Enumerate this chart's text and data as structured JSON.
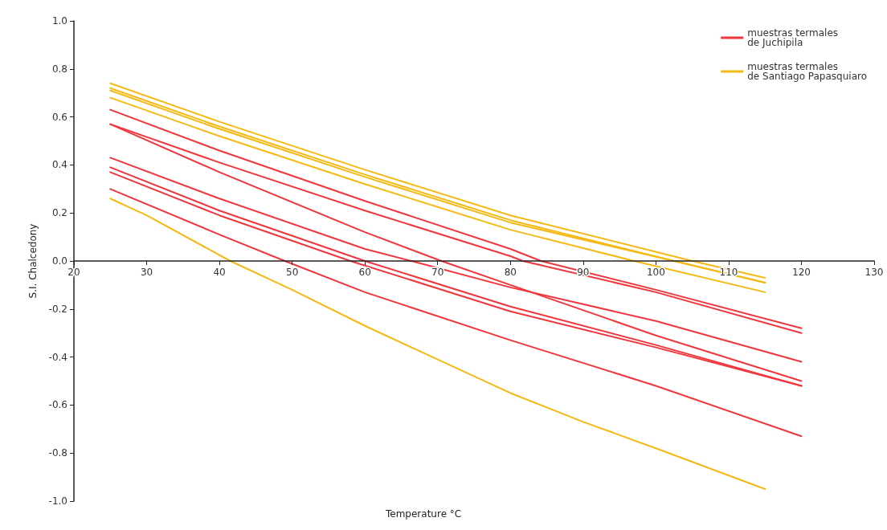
{
  "chart_data": {
    "type": "line",
    "xlabel": "Temperature °C",
    "ylabel": "S.I. Chalcedony",
    "xlim": [
      20,
      130
    ],
    "xticks": [
      20,
      30,
      40,
      50,
      60,
      70,
      80,
      90,
      100,
      110,
      120,
      130
    ],
    "ylim": [
      -1,
      1
    ],
    "yticks": [
      {
        "value": -1,
        "label": "-1.0"
      },
      {
        "value": -0.8,
        "label": "-0.8"
      },
      {
        "value": -0.6,
        "label": "-0.6"
      },
      {
        "value": -0.4,
        "label": "-0.4"
      },
      {
        "value": -0.2,
        "label": "-0.2"
      },
      {
        "value": 0,
        "label": "0.0"
      },
      {
        "value": 0.2,
        "label": "0.2"
      },
      {
        "value": 0.4,
        "label": "0.4"
      },
      {
        "value": 0.6,
        "label": "0.6"
      },
      {
        "value": 0.8,
        "label": "0.8"
      },
      {
        "value": 1,
        "label": "1.0"
      }
    ],
    "legend": "top right",
    "marker": "none",
    "line_style": "solid",
    "series": [
      {
        "name": "muestras termales\nde Juchipila",
        "color": "#f0363c",
        "x": [
          25,
          40,
          60,
          80,
          84.2,
          100,
          120
        ],
        "values": [
          0.63,
          0.46,
          0.25,
          0.05,
          0,
          -0.12,
          -0.28
        ]
      },
      {
        "color": "#f0363c",
        "x": [
          25,
          40,
          60,
          80,
          81.7,
          100,
          120
        ],
        "values": [
          0.57,
          0.41,
          0.21,
          0.02,
          0,
          -0.13,
          -0.3
        ]
      },
      {
        "color": "#f0363c",
        "x": [
          25,
          40,
          60,
          70.5,
          80,
          100,
          120
        ],
        "values": [
          0.57,
          0.37,
          0.12,
          0,
          -0.1,
          -0.31,
          -0.5
        ]
      },
      {
        "color": "#f0363c",
        "x": [
          25,
          40,
          60,
          66.4,
          80,
          100,
          120
        ],
        "values": [
          0.43,
          0.26,
          0.05,
          0,
          -0.11,
          -0.25,
          -0.42
        ]
      },
      {
        "color": "#f0363c",
        "x": [
          25,
          40,
          60,
          80,
          100,
          120
        ],
        "values": [
          0.39,
          0.21,
          0,
          -0.19,
          -0.35,
          -0.52
        ]
      },
      {
        "color": "#f0363c",
        "x": [
          25,
          40,
          58,
          80,
          100,
          120
        ],
        "values": [
          0.37,
          0.19,
          0,
          -0.21,
          -0.36,
          -0.52
        ]
      },
      {
        "color": "#f0363c",
        "x": [
          25,
          40,
          49,
          60,
          80,
          100,
          120
        ],
        "values": [
          0.3,
          0.11,
          0,
          -0.13,
          -0.33,
          -0.52,
          -0.73
        ]
      },
      {
        "name": "muestras termales\nde Santiago Papasquiaro",
        "color": "#f5b914",
        "x": [
          25,
          40,
          60,
          80,
          105,
          115
        ],
        "values": [
          0.74,
          0.58,
          0.38,
          0.19,
          0,
          -0.07
        ]
      },
      {
        "color": "#f5b914",
        "x": [
          25,
          40,
          60,
          80,
          102.5,
          115
        ],
        "values": [
          0.72,
          0.56,
          0.36,
          0.17,
          0,
          -0.09
        ]
      },
      {
        "color": "#f5b914",
        "x": [
          25,
          40,
          60,
          80,
          102.5,
          115
        ],
        "values": [
          0.71,
          0.55,
          0.35,
          0.16,
          0,
          -0.09
        ]
      },
      {
        "color": "#f5b914",
        "x": [
          25,
          40,
          60,
          80,
          97,
          115
        ],
        "values": [
          0.68,
          0.52,
          0.32,
          0.13,
          0,
          -0.13
        ]
      },
      {
        "color": "#f5b914",
        "x": [
          25,
          30,
          41.5,
          50,
          60,
          70,
          80,
          90,
          100,
          115
        ],
        "values": [
          0.26,
          0.19,
          0,
          -0.12,
          -0.27,
          -0.41,
          -0.55,
          -0.67,
          -0.78,
          -0.95
        ]
      }
    ]
  }
}
